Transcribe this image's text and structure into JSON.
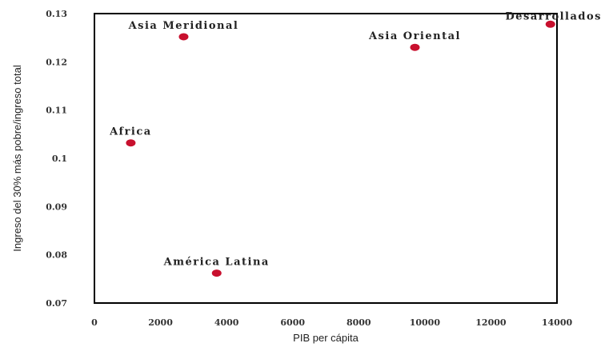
{
  "chart_data": {
    "type": "scatter",
    "title": "",
    "xlabel": "PIB per cápita",
    "ylabel": "Ingreso del 30% más pobre/ingreso total",
    "xlim": [
      0,
      14000
    ],
    "ylim": [
      0.07,
      0.13
    ],
    "x_ticks": [
      {
        "value": 0,
        "label": "0"
      },
      {
        "value": 2000,
        "label": "2000"
      },
      {
        "value": 4000,
        "label": "4000"
      },
      {
        "value": 6000,
        "label": "6000"
      },
      {
        "value": 8000,
        "label": "8000"
      },
      {
        "value": 10000,
        "label": "10000"
      },
      {
        "value": 12000,
        "label": "12000"
      },
      {
        "value": 14000,
        "label": "14000"
      }
    ],
    "y_ticks": [
      {
        "value": 0.07,
        "label": "0.07"
      },
      {
        "value": 0.08,
        "label": "0.08"
      },
      {
        "value": 0.09,
        "label": "0.09"
      },
      {
        "value": 0.1,
        "label": "0.1"
      },
      {
        "value": 0.11,
        "label": "0.11"
      },
      {
        "value": 0.12,
        "label": "0.12"
      },
      {
        "value": 0.13,
        "label": "0.13"
      }
    ],
    "grid": false,
    "marker_color": "#c8102e",
    "points": [
      {
        "label": "Asia Meridional",
        "x": 2700,
        "y": 0.1252
      },
      {
        "label": "Asia Oriental",
        "x": 9700,
        "y": 0.123
      },
      {
        "label": "Desarrollados",
        "x": 13800,
        "y": 0.1278
      },
      {
        "label": "Africa",
        "x": 1100,
        "y": 0.1032
      },
      {
        "label": "América Latina",
        "x": 3700,
        "y": 0.0762
      }
    ]
  }
}
